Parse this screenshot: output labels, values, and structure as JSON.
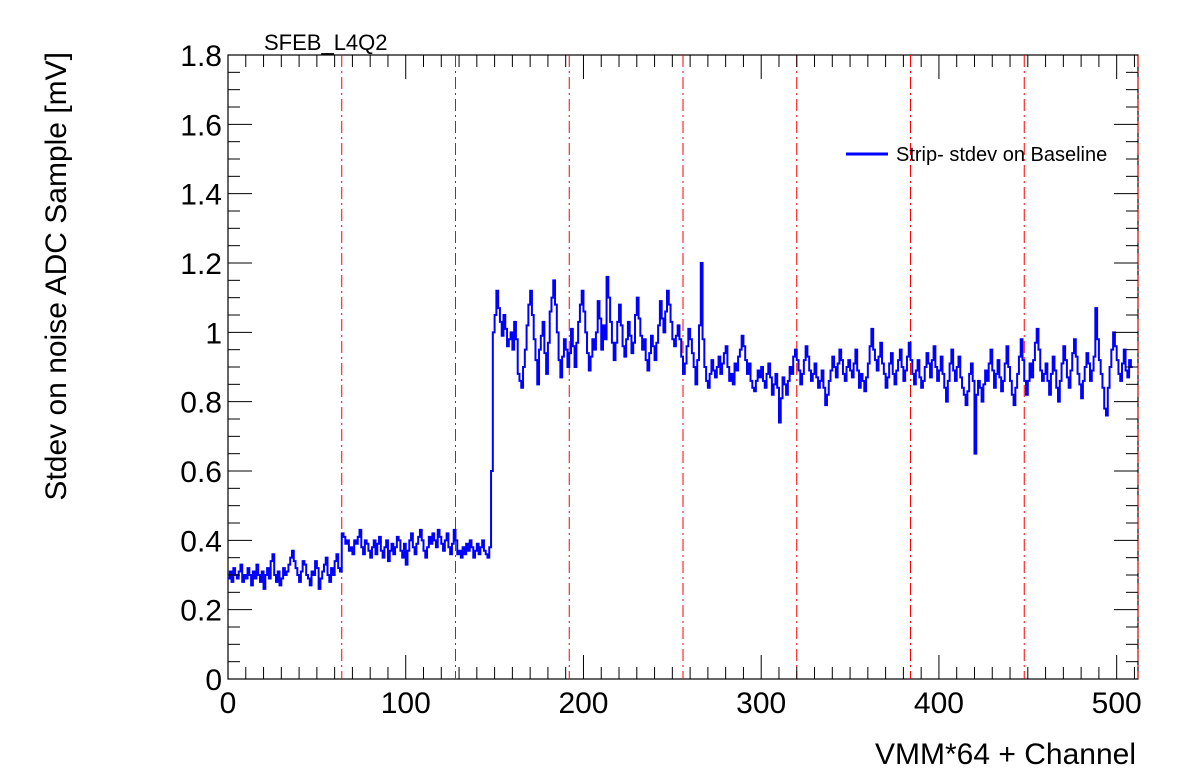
{
  "chart_data": {
    "type": "line",
    "title": "SFEB_L4Q2",
    "xlabel": "VMM*64 + Channel",
    "ylabel": "Stdev on noise ADC Sample [mV]",
    "xlim": [
      0,
      512
    ],
    "ylim": [
      0,
      1.8
    ],
    "x_ticks": [
      0,
      100,
      200,
      300,
      400,
      500
    ],
    "x_tick_labels": [
      "0",
      "100",
      "200",
      "300",
      "400",
      "500"
    ],
    "y_ticks": [
      0,
      0.2,
      0.4,
      0.6,
      0.8,
      1.0,
      1.2,
      1.4,
      1.6,
      1.8
    ],
    "y_tick_labels": [
      "0",
      "0.2",
      "0.4",
      "0.6",
      "0.8",
      "1",
      "1.2",
      "1.4",
      "1.6",
      "1.8"
    ],
    "grid": false,
    "legend_position": "top-right",
    "vmm_boundaries": [
      64,
      128,
      192,
      256,
      320,
      384,
      448,
      512
    ],
    "boundary_color": "#ff0000",
    "series": [
      {
        "name": "Strip- stdev on Baseline",
        "color": "#0000ff",
        "x_start": 0,
        "x_step": 1,
        "values": [
          0.29,
          0.31,
          0.28,
          0.32,
          0.3,
          0.29,
          0.31,
          0.33,
          0.28,
          0.3,
          0.29,
          0.32,
          0.3,
          0.27,
          0.31,
          0.29,
          0.33,
          0.3,
          0.28,
          0.31,
          0.26,
          0.3,
          0.32,
          0.29,
          0.34,
          0.36,
          0.3,
          0.28,
          0.31,
          0.27,
          0.29,
          0.32,
          0.3,
          0.31,
          0.33,
          0.35,
          0.37,
          0.34,
          0.32,
          0.3,
          0.28,
          0.31,
          0.34,
          0.33,
          0.3,
          0.29,
          0.27,
          0.31,
          0.3,
          0.34,
          0.32,
          0.26,
          0.29,
          0.31,
          0.33,
          0.35,
          0.3,
          0.28,
          0.32,
          0.3,
          0.34,
          0.36,
          0.32,
          0.31,
          0.42,
          0.41,
          0.39,
          0.4,
          0.37,
          0.38,
          0.36,
          0.4,
          0.39,
          0.41,
          0.43,
          0.38,
          0.36,
          0.4,
          0.39,
          0.37,
          0.35,
          0.38,
          0.4,
          0.36,
          0.39,
          0.41,
          0.37,
          0.35,
          0.38,
          0.4,
          0.34,
          0.37,
          0.39,
          0.36,
          0.38,
          0.41,
          0.4,
          0.37,
          0.35,
          0.39,
          0.33,
          0.37,
          0.4,
          0.42,
          0.38,
          0.36,
          0.39,
          0.41,
          0.43,
          0.4,
          0.37,
          0.35,
          0.38,
          0.41,
          0.39,
          0.42,
          0.4,
          0.38,
          0.43,
          0.41,
          0.39,
          0.37,
          0.4,
          0.42,
          0.38,
          0.36,
          0.39,
          0.43,
          0.4,
          0.36,
          0.37,
          0.35,
          0.38,
          0.36,
          0.39,
          0.37,
          0.4,
          0.38,
          0.35,
          0.37,
          0.39,
          0.36,
          0.38,
          0.4,
          0.37,
          0.36,
          0.35,
          0.38,
          0.6,
          1.0,
          1.05,
          1.12,
          1.07,
          1.03,
          0.99,
          1.05,
          1.01,
          0.96,
          0.98,
          1.0,
          0.95,
          1.03,
          0.98,
          0.88,
          0.86,
          0.84,
          0.9,
          0.95,
          1.02,
          1.08,
          1.12,
          1.05,
          0.98,
          0.92,
          0.85,
          0.95,
          0.99,
          1.03,
          0.94,
          0.88,
          0.97,
          1.06,
          1.1,
          1.15,
          1.08,
          1.0,
          0.92,
          0.87,
          0.93,
          0.98,
          0.95,
          0.9,
          0.94,
          1.01,
          0.96,
          0.9,
          0.97,
          1.03,
          1.08,
          1.12,
          1.06,
          1.0,
          0.94,
          0.89,
          0.93,
          0.98,
          0.95,
          1.0,
          1.09,
          1.04,
          0.95,
          1.02,
          0.98,
          1.16,
          1.1,
          1.03,
          0.97,
          0.92,
          0.97,
          1.03,
          1.08,
          1.02,
          0.96,
          0.93,
          0.98,
          1.03,
          0.99,
          0.94,
          0.97,
          1.05,
          1.1,
          1.04,
          0.99,
          0.95,
          0.98,
          0.92,
          0.89,
          0.94,
          0.99,
          0.96,
          0.92,
          0.97,
          1.02,
          1.09,
          1.04,
          1.0,
          1.06,
          1.12,
          1.08,
          1.03,
          0.98,
          0.96,
          0.99,
          1.02,
          0.98,
          0.93,
          0.88,
          0.91,
          0.96,
          1.01,
          0.98,
          0.94,
          0.9,
          0.85,
          0.92,
          1.02,
          1.2,
          0.98,
          0.9,
          0.86,
          0.84,
          0.88,
          0.92,
          0.89,
          0.87,
          0.9,
          0.93,
          0.88,
          0.91,
          0.94,
          0.96,
          0.9,
          0.86,
          0.88,
          0.85,
          0.91,
          0.89,
          0.93,
          0.95,
          0.99,
          0.96,
          0.92,
          0.88,
          0.91,
          0.86,
          0.84,
          0.83,
          0.86,
          0.89,
          0.87,
          0.9,
          0.86,
          0.84,
          0.88,
          0.91,
          0.87,
          0.82,
          0.85,
          0.88,
          0.84,
          0.74,
          0.81,
          0.87,
          0.85,
          0.82,
          0.86,
          0.9,
          0.88,
          0.93,
          0.95,
          0.92,
          0.89,
          0.85,
          0.88,
          0.92,
          0.96,
          0.93,
          0.89,
          0.86,
          0.88,
          0.91,
          0.87,
          0.84,
          0.86,
          0.89,
          0.84,
          0.79,
          0.82,
          0.86,
          0.89,
          0.93,
          0.9,
          0.87,
          0.91,
          0.95,
          0.92,
          0.88,
          0.86,
          0.9,
          0.92,
          0.89,
          0.87,
          0.91,
          0.95,
          0.89,
          0.84,
          0.88,
          0.86,
          0.83,
          0.87,
          0.91,
          0.96,
          1.01,
          0.95,
          0.92,
          0.89,
          0.93,
          0.97,
          0.91,
          0.88,
          0.84,
          0.87,
          0.91,
          0.94,
          0.88,
          0.85,
          0.89,
          0.92,
          0.95,
          0.9,
          0.86,
          0.89,
          0.93,
          0.97,
          0.92,
          0.88,
          0.85,
          0.89,
          0.92,
          0.87,
          0.84,
          0.86,
          0.9,
          0.94,
          0.91,
          0.87,
          0.92,
          0.96,
          0.9,
          0.86,
          0.89,
          0.93,
          0.88,
          0.84,
          0.8,
          0.86,
          0.91,
          0.95,
          0.89,
          0.86,
          0.9,
          0.93,
          0.87,
          0.84,
          0.82,
          0.79,
          0.83,
          0.88,
          0.91,
          0.86,
          0.65,
          0.82,
          0.86,
          0.84,
          0.8,
          0.85,
          0.89,
          0.86,
          0.91,
          0.95,
          0.89,
          0.84,
          0.88,
          0.92,
          0.87,
          0.83,
          0.86,
          0.91,
          0.96,
          0.9,
          0.86,
          0.82,
          0.79,
          0.84,
          0.88,
          0.93,
          0.98,
          0.92,
          0.86,
          0.82,
          0.86,
          0.91,
          0.87,
          0.92,
          0.97,
          1.01,
          0.95,
          0.89,
          0.86,
          0.88,
          0.91,
          0.86,
          0.82,
          0.88,
          0.93,
          0.89,
          0.84,
          0.8,
          0.86,
          0.91,
          0.96,
          0.92,
          0.87,
          0.84,
          0.89,
          0.94,
          0.98,
          0.93,
          0.88,
          0.85,
          0.81,
          0.86,
          0.9,
          0.94,
          0.91,
          0.86,
          0.89,
          0.93,
          1.07,
          0.98,
          0.92,
          0.88,
          0.84,
          0.78,
          0.76,
          0.84,
          0.9,
          0.95,
          1.0,
          0.96,
          0.92,
          0.88,
          0.86,
          0.91,
          0.95,
          0.89,
          0.87,
          0.92,
          0.9
        ]
      }
    ]
  }
}
